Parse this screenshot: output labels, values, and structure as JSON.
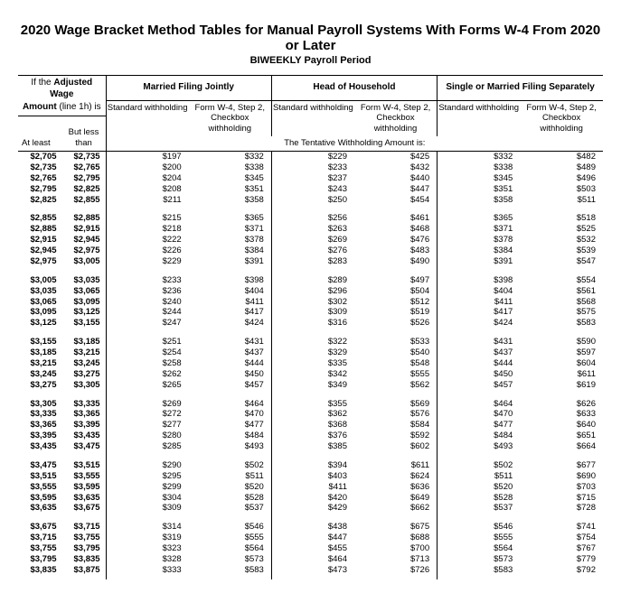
{
  "title": "2020 Wage Bracket Method Tables for Manual Payroll Systems With Forms W-4 From 2020 or Later",
  "subtitle": "BIWEEKLY Payroll Period",
  "header": {
    "adj_line1_prefix": "If the ",
    "adj_line1_bold": "Adjusted Wage",
    "adj_line2_bold": "Amount",
    "adj_line2_suffix": " (line 1h) is",
    "groups": [
      "Married Filing Jointly",
      "Head of Household",
      "Single or Married Filing Separately"
    ],
    "std": "Standard withholding",
    "form": "Form W-4, Step 2, Checkbox withholding",
    "atleast": "At least",
    "butless_l1": "But less",
    "butless_l2": "than",
    "tentative": "The Tentative Withholding Amount is:"
  },
  "rows": [
    {
      "lo": "$2,705",
      "hi": "$2,735",
      "v": [
        "$197",
        "$332",
        "$229",
        "$425",
        "$332",
        "$482"
      ]
    },
    {
      "lo": "$2,735",
      "hi": "$2,765",
      "v": [
        "$200",
        "$338",
        "$233",
        "$432",
        "$338",
        "$489"
      ]
    },
    {
      "lo": "$2,765",
      "hi": "$2,795",
      "v": [
        "$204",
        "$345",
        "$237",
        "$440",
        "$345",
        "$496"
      ]
    },
    {
      "lo": "$2,795",
      "hi": "$2,825",
      "v": [
        "$208",
        "$351",
        "$243",
        "$447",
        "$351",
        "$503"
      ]
    },
    {
      "lo": "$2,825",
      "hi": "$2,855",
      "v": [
        "$211",
        "$358",
        "$250",
        "$454",
        "$358",
        "$511"
      ]
    },
    {
      "lo": "$2,855",
      "hi": "$2,885",
      "v": [
        "$215",
        "$365",
        "$256",
        "$461",
        "$365",
        "$518"
      ]
    },
    {
      "lo": "$2,885",
      "hi": "$2,915",
      "v": [
        "$218",
        "$371",
        "$263",
        "$468",
        "$371",
        "$525"
      ]
    },
    {
      "lo": "$2,915",
      "hi": "$2,945",
      "v": [
        "$222",
        "$378",
        "$269",
        "$476",
        "$378",
        "$532"
      ]
    },
    {
      "lo": "$2,945",
      "hi": "$2,975",
      "v": [
        "$226",
        "$384",
        "$276",
        "$483",
        "$384",
        "$539"
      ]
    },
    {
      "lo": "$2,975",
      "hi": "$3,005",
      "v": [
        "$229",
        "$391",
        "$283",
        "$490",
        "$391",
        "$547"
      ]
    },
    {
      "lo": "$3,005",
      "hi": "$3,035",
      "v": [
        "$233",
        "$398",
        "$289",
        "$497",
        "$398",
        "$554"
      ]
    },
    {
      "lo": "$3,035",
      "hi": "$3,065",
      "v": [
        "$236",
        "$404",
        "$296",
        "$504",
        "$404",
        "$561"
      ]
    },
    {
      "lo": "$3,065",
      "hi": "$3,095",
      "v": [
        "$240",
        "$411",
        "$302",
        "$512",
        "$411",
        "$568"
      ]
    },
    {
      "lo": "$3,095",
      "hi": "$3,125",
      "v": [
        "$244",
        "$417",
        "$309",
        "$519",
        "$417",
        "$575"
      ]
    },
    {
      "lo": "$3,125",
      "hi": "$3,155",
      "v": [
        "$247",
        "$424",
        "$316",
        "$526",
        "$424",
        "$583"
      ]
    },
    {
      "lo": "$3,155",
      "hi": "$3,185",
      "v": [
        "$251",
        "$431",
        "$322",
        "$533",
        "$431",
        "$590"
      ]
    },
    {
      "lo": "$3,185",
      "hi": "$3,215",
      "v": [
        "$254",
        "$437",
        "$329",
        "$540",
        "$437",
        "$597"
      ]
    },
    {
      "lo": "$3,215",
      "hi": "$3,245",
      "v": [
        "$258",
        "$444",
        "$335",
        "$548",
        "$444",
        "$604"
      ]
    },
    {
      "lo": "$3,245",
      "hi": "$3,275",
      "v": [
        "$262",
        "$450",
        "$342",
        "$555",
        "$450",
        "$611"
      ]
    },
    {
      "lo": "$3,275",
      "hi": "$3,305",
      "v": [
        "$265",
        "$457",
        "$349",
        "$562",
        "$457",
        "$619"
      ]
    },
    {
      "lo": "$3,305",
      "hi": "$3,335",
      "v": [
        "$269",
        "$464",
        "$355",
        "$569",
        "$464",
        "$626"
      ]
    },
    {
      "lo": "$3,335",
      "hi": "$3,365",
      "v": [
        "$272",
        "$470",
        "$362",
        "$576",
        "$470",
        "$633"
      ]
    },
    {
      "lo": "$3,365",
      "hi": "$3,395",
      "v": [
        "$277",
        "$477",
        "$368",
        "$584",
        "$477",
        "$640"
      ]
    },
    {
      "lo": "$3,395",
      "hi": "$3,435",
      "v": [
        "$280",
        "$484",
        "$376",
        "$592",
        "$484",
        "$651"
      ]
    },
    {
      "lo": "$3,435",
      "hi": "$3,475",
      "v": [
        "$285",
        "$493",
        "$385",
        "$602",
        "$493",
        "$664"
      ]
    },
    {
      "lo": "$3,475",
      "hi": "$3,515",
      "v": [
        "$290",
        "$502",
        "$394",
        "$611",
        "$502",
        "$677"
      ]
    },
    {
      "lo": "$3,515",
      "hi": "$3,555",
      "v": [
        "$295",
        "$511",
        "$403",
        "$624",
        "$511",
        "$690"
      ]
    },
    {
      "lo": "$3,555",
      "hi": "$3,595",
      "v": [
        "$299",
        "$520",
        "$411",
        "$636",
        "$520",
        "$703"
      ]
    },
    {
      "lo": "$3,595",
      "hi": "$3,635",
      "v": [
        "$304",
        "$528",
        "$420",
        "$649",
        "$528",
        "$715"
      ]
    },
    {
      "lo": "$3,635",
      "hi": "$3,675",
      "v": [
        "$309",
        "$537",
        "$429",
        "$662",
        "$537",
        "$728"
      ]
    },
    {
      "lo": "$3,675",
      "hi": "$3,715",
      "v": [
        "$314",
        "$546",
        "$438",
        "$675",
        "$546",
        "$741"
      ]
    },
    {
      "lo": "$3,715",
      "hi": "$3,755",
      "v": [
        "$319",
        "$555",
        "$447",
        "$688",
        "$555",
        "$754"
      ]
    },
    {
      "lo": "$3,755",
      "hi": "$3,795",
      "v": [
        "$323",
        "$564",
        "$455",
        "$700",
        "$564",
        "$767"
      ]
    },
    {
      "lo": "$3,795",
      "hi": "$3,835",
      "v": [
        "$328",
        "$573",
        "$464",
        "$713",
        "$573",
        "$779"
      ]
    },
    {
      "lo": "$3,835",
      "hi": "$3,875",
      "v": [
        "$333",
        "$583",
        "$473",
        "$726",
        "$583",
        "$792"
      ]
    }
  ]
}
